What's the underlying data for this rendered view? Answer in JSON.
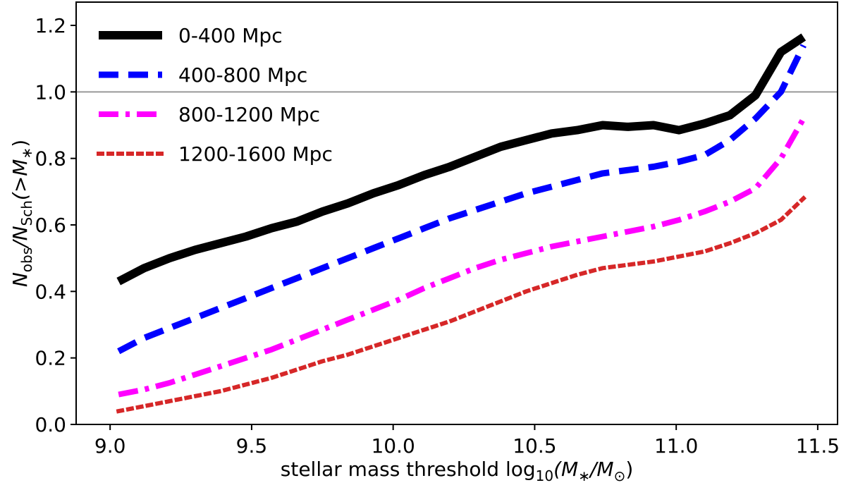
{
  "chart_data": {
    "type": "line",
    "title": "",
    "xlabel": "stellar mass threshold log",
    "xlabel_sub": "10",
    "xlabel_tail": "(M",
    "xlabel_sub2": "∗",
    "xlabel_mid": "/M",
    "xlabel_sub3": "⊙",
    "xlabel_end": ")",
    "ylabel": "N",
    "ylabel_sub1": "obs",
    "ylabel_mid": "/N",
    "ylabel_sub2": "Sch",
    "ylabel_end": "(>M",
    "ylabel_sub3": "∗",
    "ylabel_close": ")",
    "xlim": [
      8.88,
      11.57
    ],
    "ylim": [
      0.0,
      1.27
    ],
    "xticks": [
      9.0,
      9.5,
      10.0,
      10.5,
      11.0,
      11.5
    ],
    "xtick_labels": [
      "9.0",
      "9.5",
      "10.0",
      "10.5",
      "11.0",
      "11.5"
    ],
    "yticks": [
      0.0,
      0.2,
      0.4,
      0.6,
      0.8,
      1.0,
      1.2
    ],
    "ytick_labels": [
      "0.0",
      "0.2",
      "0.4",
      "0.6",
      "0.8",
      "1.0",
      "1.2"
    ],
    "reference_line": {
      "y": 1.0,
      "color": "#999999"
    },
    "legend_position": "top-left",
    "series": [
      {
        "name": "0-400 Mpc",
        "color": "#000000",
        "style": "solid",
        "x": [
          9.03,
          9.12,
          9.21,
          9.3,
          9.39,
          9.48,
          9.57,
          9.66,
          9.75,
          9.84,
          9.93,
          10.02,
          10.11,
          10.2,
          10.29,
          10.38,
          10.47,
          10.56,
          10.65,
          10.74,
          10.83,
          10.92,
          11.01,
          11.1,
          11.19,
          11.28,
          11.37,
          11.45
        ],
        "y": [
          0.43,
          0.47,
          0.5,
          0.525,
          0.545,
          0.565,
          0.59,
          0.61,
          0.64,
          0.665,
          0.695,
          0.72,
          0.75,
          0.775,
          0.805,
          0.835,
          0.855,
          0.875,
          0.885,
          0.9,
          0.895,
          0.9,
          0.885,
          0.905,
          0.93,
          0.99,
          1.12,
          1.165
        ]
      },
      {
        "name": "400-800 Mpc",
        "color": "#0000ff",
        "style": "dashed",
        "x": [
          9.03,
          9.12,
          9.21,
          9.3,
          9.39,
          9.48,
          9.57,
          9.66,
          9.75,
          9.84,
          9.93,
          10.02,
          10.11,
          10.2,
          10.29,
          10.38,
          10.47,
          10.56,
          10.65,
          10.74,
          10.83,
          10.92,
          11.01,
          11.1,
          11.19,
          11.28,
          11.37,
          11.45
        ],
        "y": [
          0.22,
          0.26,
          0.29,
          0.32,
          0.35,
          0.38,
          0.41,
          0.44,
          0.47,
          0.5,
          0.53,
          0.56,
          0.59,
          0.62,
          0.645,
          0.67,
          0.695,
          0.715,
          0.735,
          0.755,
          0.765,
          0.775,
          0.79,
          0.81,
          0.855,
          0.92,
          1.0,
          1.14
        ]
      },
      {
        "name": "800-1200 Mpc",
        "color": "#ff00ff",
        "style": "dashdot",
        "x": [
          9.03,
          9.12,
          9.21,
          9.3,
          9.39,
          9.48,
          9.57,
          9.66,
          9.75,
          9.84,
          9.93,
          10.02,
          10.11,
          10.2,
          10.29,
          10.38,
          10.47,
          10.56,
          10.65,
          10.74,
          10.83,
          10.92,
          11.01,
          11.1,
          11.19,
          11.28,
          11.37,
          11.45
        ],
        "y": [
          0.09,
          0.105,
          0.125,
          0.15,
          0.175,
          0.2,
          0.225,
          0.255,
          0.285,
          0.315,
          0.345,
          0.375,
          0.41,
          0.44,
          0.47,
          0.495,
          0.515,
          0.535,
          0.55,
          0.565,
          0.58,
          0.595,
          0.615,
          0.64,
          0.67,
          0.71,
          0.8,
          0.92
        ]
      },
      {
        "name": "1200-1600 Mpc",
        "color": "#d62728",
        "style": "dotted",
        "x": [
          9.03,
          9.12,
          9.21,
          9.3,
          9.39,
          9.48,
          9.57,
          9.66,
          9.75,
          9.84,
          9.93,
          10.02,
          10.11,
          10.2,
          10.29,
          10.38,
          10.47,
          10.56,
          10.65,
          10.74,
          10.83,
          10.92,
          11.01,
          11.1,
          11.19,
          11.28,
          11.37,
          11.45
        ],
        "y": [
          0.04,
          0.055,
          0.07,
          0.085,
          0.1,
          0.12,
          0.14,
          0.165,
          0.19,
          0.21,
          0.235,
          0.26,
          0.285,
          0.31,
          0.34,
          0.37,
          0.4,
          0.425,
          0.45,
          0.47,
          0.48,
          0.49,
          0.505,
          0.52,
          0.545,
          0.575,
          0.615,
          0.68
        ]
      }
    ]
  }
}
